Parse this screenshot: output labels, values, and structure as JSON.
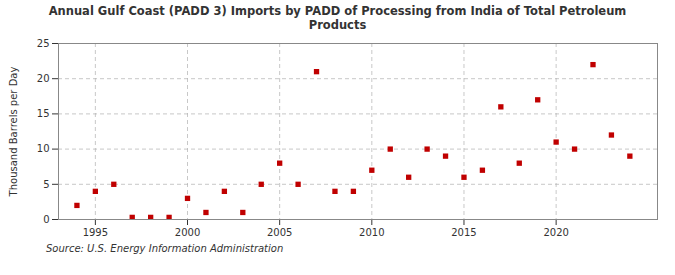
{
  "chart_data": {
    "type": "scatter",
    "title": "Annual Gulf Coast (PADD 3) Imports by PADD of Processing from India of Total Petroleum\nProducts",
    "ylabel": "Thousand Barrels per Day",
    "source": "Source: U.S. Energy Information Administration",
    "x": [
      1994,
      1995,
      1996,
      1997,
      1998,
      1999,
      2000,
      2001,
      2002,
      2003,
      2004,
      2005,
      2006,
      2007,
      2008,
      2009,
      2010,
      2011,
      2012,
      2013,
      2014,
      2015,
      2016,
      2017,
      2018,
      2019,
      2020,
      2021,
      2022,
      2023,
      2024
    ],
    "values": [
      2,
      4,
      5,
      0.3,
      0.3,
      0.3,
      3,
      1,
      4,
      1,
      5,
      8,
      5,
      21,
      4,
      4,
      7,
      10,
      6,
      10,
      9,
      6,
      7,
      16,
      8,
      17,
      11,
      10,
      22,
      12,
      9
    ],
    "color": "#c00000",
    "marker": "square",
    "xlim": [
      1993,
      2025.5
    ],
    "ylim": [
      0,
      25
    ],
    "xticks": [
      1995,
      2000,
      2005,
      2010,
      2015,
      2020
    ],
    "yticks": [
      0,
      5,
      10,
      15,
      20,
      25
    ],
    "grid": true
  }
}
